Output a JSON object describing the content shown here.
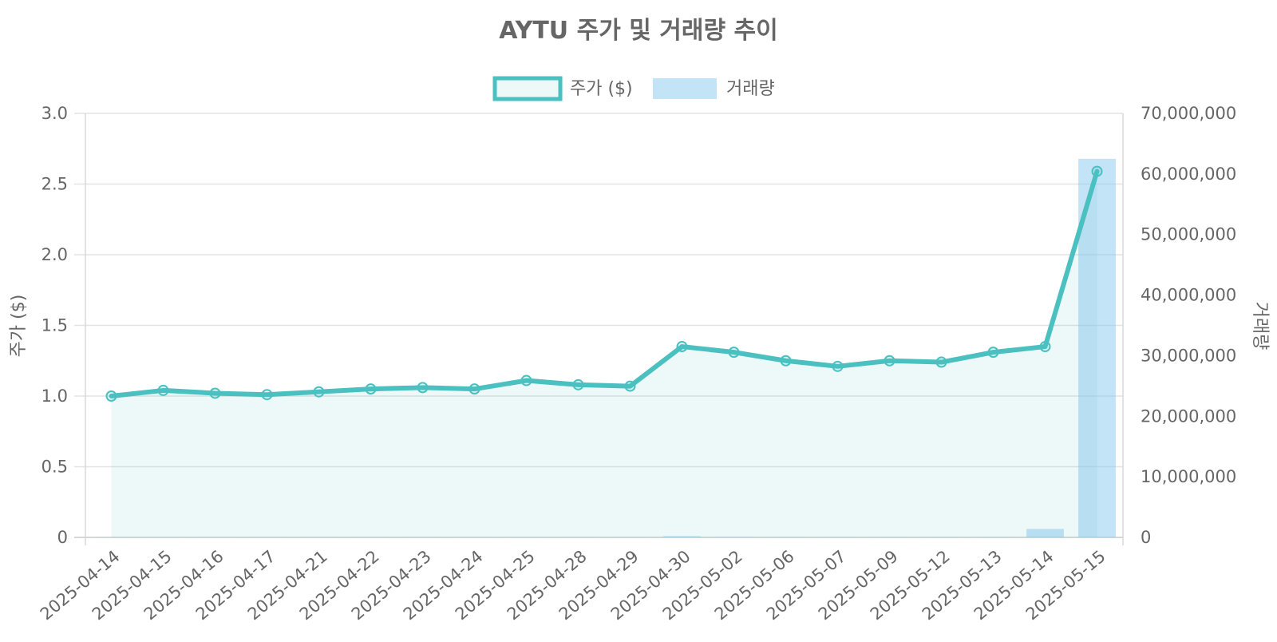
{
  "chart_data": {
    "type": "line",
    "title": "AYTU 주가 및 거래량 추이",
    "legend_position": "top",
    "grid": true,
    "categories": [
      "2025-04-14",
      "2025-04-15",
      "2025-04-16",
      "2025-04-17",
      "2025-04-21",
      "2025-04-22",
      "2025-04-23",
      "2025-04-24",
      "2025-04-25",
      "2025-04-28",
      "2025-04-29",
      "2025-04-30",
      "2025-05-02",
      "2025-05-06",
      "2025-05-07",
      "2025-05-09",
      "2025-05-12",
      "2025-05-13",
      "2025-05-14",
      "2025-05-15"
    ],
    "y_left": {
      "label": "주가 ($)",
      "range": [
        0,
        3.0
      ],
      "ticks": [
        "0",
        "0.5",
        "1.0",
        "1.5",
        "2.0",
        "2.5",
        "3.0"
      ]
    },
    "y_right": {
      "label": "거래량",
      "range": [
        0,
        70000000
      ],
      "ticks": [
        "0",
        "10,000,000",
        "20,000,000",
        "30,000,000",
        "40,000,000",
        "50,000,000",
        "60,000,000",
        "70,000,000"
      ]
    },
    "series": [
      {
        "name": "주가 ($)",
        "type": "line",
        "axis": "left",
        "color": "#4bc0c0",
        "fill": "rgba(75,192,192,0.1)",
        "values": [
          1.0,
          1.04,
          1.02,
          1.01,
          1.03,
          1.05,
          1.06,
          1.05,
          1.11,
          1.08,
          1.07,
          1.35,
          1.31,
          1.25,
          1.21,
          1.25,
          1.24,
          1.31,
          1.35,
          2.59
        ]
      },
      {
        "name": "거래량",
        "type": "bar",
        "axis": "right",
        "color": "rgba(135,200,240,0.5)",
        "values": [
          20000,
          20000,
          15000,
          15000,
          15000,
          15000,
          15000,
          15000,
          20000,
          15000,
          15000,
          200000,
          50000,
          30000,
          30000,
          30000,
          30000,
          30000,
          1400000,
          62500000
        ]
      }
    ]
  }
}
